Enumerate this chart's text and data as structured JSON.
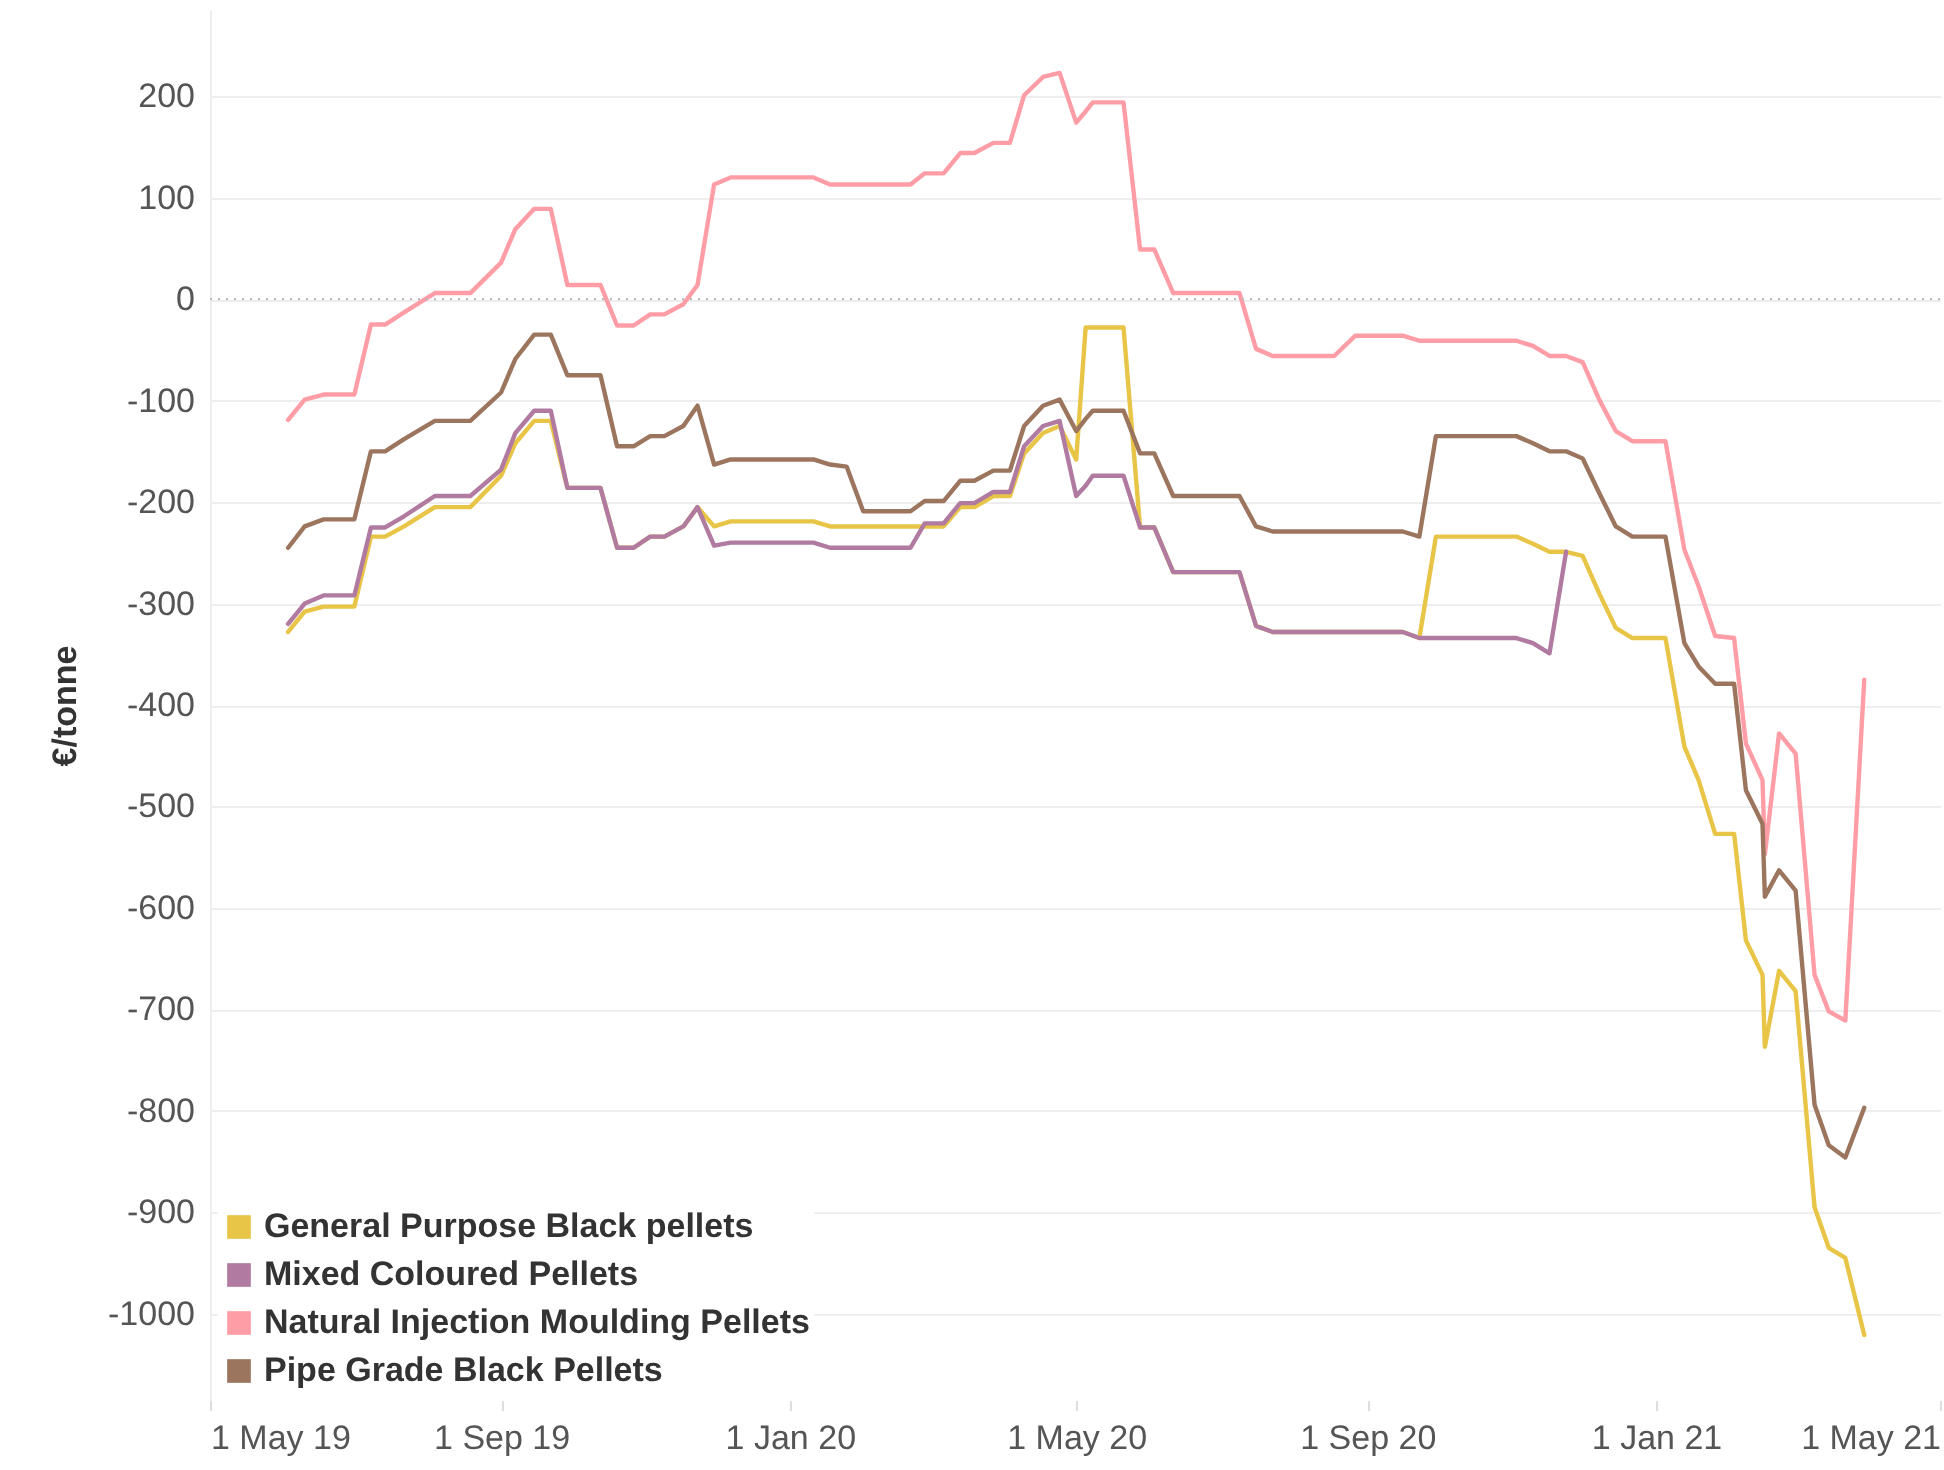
{
  "chart_data": {
    "type": "line",
    "ylabel": "€/tonne",
    "x": [
      "2019-06-03",
      "2019-06-10",
      "2019-06-18",
      "2019-07-01",
      "2019-07-08",
      "2019-07-14",
      "2019-07-22",
      "2019-08-04",
      "2019-08-19",
      "2019-09-01",
      "2019-09-07",
      "2019-09-15",
      "2019-09-22",
      "2019-09-29",
      "2019-10-13",
      "2019-10-20",
      "2019-10-27",
      "2019-11-03",
      "2019-11-09",
      "2019-11-17",
      "2019-11-23",
      "2019-11-30",
      "2019-12-07",
      "2019-12-28",
      "2020-01-11",
      "2020-01-18",
      "2020-01-25",
      "2020-02-01",
      "2020-02-21",
      "2020-02-27",
      "2020-03-06",
      "2020-03-13",
      "2020-03-19",
      "2020-03-27",
      "2020-04-03",
      "2020-04-09",
      "2020-04-17",
      "2020-04-24",
      "2020-05-01",
      "2020-05-05",
      "2020-05-08",
      "2020-05-21",
      "2020-05-28",
      "2020-06-03",
      "2020-06-11",
      "2020-07-09",
      "2020-07-16",
      "2020-07-23",
      "2020-08-18",
      "2020-08-27",
      "2020-09-16",
      "2020-09-23",
      "2020-09-30",
      "2020-11-03",
      "2020-11-10",
      "2020-11-17",
      "2020-11-24",
      "2020-12-01",
      "2020-12-08",
      "2020-12-15",
      "2020-12-22",
      "2021-01-05",
      "2021-01-13",
      "2021-01-19",
      "2021-01-26",
      "2021-02-03",
      "2021-02-08",
      "2021-02-15",
      "2021-02-16",
      "2021-02-22",
      "2021-03-01",
      "2021-03-09",
      "2021-03-15",
      "2021-03-22",
      "2021-03-30"
    ],
    "series": [
      {
        "name": "General Purpose Black pellets",
        "color": "#e8c547",
        "values": [
          -328,
          -308,
          -303,
          -303,
          -234,
          -234,
          -224,
          -205,
          -205,
          -174,
          -142,
          -120,
          -120,
          -186,
          -186,
          -245,
          -245,
          -234,
          -234,
          -224,
          -205,
          -224,
          -219,
          -219,
          -219,
          -224,
          -224,
          -224,
          -224,
          -224,
          -224,
          -205,
          -205,
          -194,
          -194,
          -152,
          -132,
          -125,
          -158,
          -28,
          -28,
          -28,
          -225,
          -225,
          -269,
          -269,
          -322,
          -328,
          -328,
          -328,
          -328,
          -334,
          -234,
          -234,
          -241,
          -249,
          -249,
          -253,
          -290,
          -324,
          -334,
          -334,
          -441,
          -474,
          -527,
          -527,
          -632,
          -666,
          -737,
          -662,
          -682,
          -895,
          -935,
          -945,
          -1021
        ]
      },
      {
        "name": "Mixed Coloured Pellets",
        "color": "#b07aa1",
        "values": [
          -320,
          -300,
          -292,
          -292,
          -225,
          -225,
          -214,
          -194,
          -194,
          -168,
          -132,
          -110,
          -110,
          -186,
          -186,
          -245,
          -245,
          -234,
          -234,
          -224,
          -205,
          -243,
          -240,
          -240,
          -240,
          -245,
          -245,
          -245,
          -245,
          -221,
          -221,
          -201,
          -201,
          -190,
          -190,
          -145,
          -125,
          -120,
          -194,
          -184,
          -174,
          -174,
          -225,
          -225,
          -269,
          -269,
          -322,
          -328,
          -328,
          -328,
          -328,
          -334,
          -334,
          -334,
          -339,
          -349,
          -249,
          null,
          null,
          null,
          null,
          null,
          null,
          null,
          null,
          null,
          null,
          null,
          null,
          null,
          null,
          null,
          null,
          null,
          null
        ]
      },
      {
        "name": " Natural Injection Moulding Pellets",
        "color": "#ff9da7",
        "values": [
          -119,
          -99,
          -94,
          -94,
          -25,
          -25,
          -13,
          6,
          6,
          36,
          69,
          89,
          89,
          14,
          14,
          -26,
          -26,
          -15,
          -15,
          -5,
          14,
          113,
          120,
          120,
          120,
          113,
          113,
          113,
          113,
          124,
          124,
          144,
          144,
          154,
          154,
          201,
          219,
          223,
          174,
          185,
          194,
          194,
          49,
          49,
          6,
          6,
          -49,
          -56,
          -56,
          -36,
          -36,
          -41,
          -41,
          -41,
          -46,
          -56,
          -56,
          -62,
          -99,
          -130,
          -140,
          -140,
          -247,
          -283,
          -332,
          -334,
          -438,
          -474,
          -547,
          -428,
          -448,
          -666,
          -702,
          -711,
          -375
        ]
      },
      {
        "name": "Pipe Grade Black Pellets",
        "color": "#9c755f",
        "values": [
          -245,
          -224,
          -217,
          -217,
          -150,
          -150,
          -138,
          -120,
          -120,
          -92,
          -59,
          -35,
          -35,
          -75,
          -75,
          -145,
          -145,
          -135,
          -135,
          -125,
          -105,
          -163,
          -158,
          -158,
          -158,
          -163,
          -165,
          -209,
          -209,
          -199,
          -199,
          -179,
          -179,
          -169,
          -169,
          -125,
          -105,
          -99,
          -130,
          -118,
          -110,
          -110,
          -152,
          -152,
          -194,
          -194,
          -224,
          -229,
          -229,
          -229,
          -229,
          -234,
          -135,
          -135,
          -142,
          -150,
          -150,
          -157,
          -191,
          -224,
          -234,
          -234,
          -339,
          -362,
          -379,
          -379,
          -484,
          -517,
          -589,
          -563,
          -583,
          -794,
          -834,
          -846,
          -797
        ]
      }
    ],
    "xlim": [
      "2019-05-01",
      "2021-05-01"
    ],
    "xticks": [
      {
        "value": "2019-05-01",
        "label": "1 May 19"
      },
      {
        "value": "2019-09-01",
        "label": "1 Sep 19"
      },
      {
        "value": "2020-01-01",
        "label": "1 Jan 20"
      },
      {
        "value": "2020-05-01",
        "label": "1 May 20"
      },
      {
        "value": "2020-09-01",
        "label": "1 Sep 20"
      },
      {
        "value": "2021-01-01",
        "label": "1 Jan 21"
      },
      {
        "value": "2021-05-01",
        "label": "1 May 21"
      }
    ],
    "ylim": [
      -1085,
      285
    ],
    "yticks": [
      -1000,
      -900,
      -800,
      -700,
      -600,
      -500,
      -400,
      -300,
      -200,
      -100,
      0,
      100,
      200
    ],
    "ref_lines": [
      {
        "axis": "y",
        "value": 0,
        "color": "#bbbbbb",
        "line_style": "dotted"
      }
    ],
    "grid": "y",
    "legend": "bottom left",
    "line_style": "solid",
    "marker": "none"
  }
}
